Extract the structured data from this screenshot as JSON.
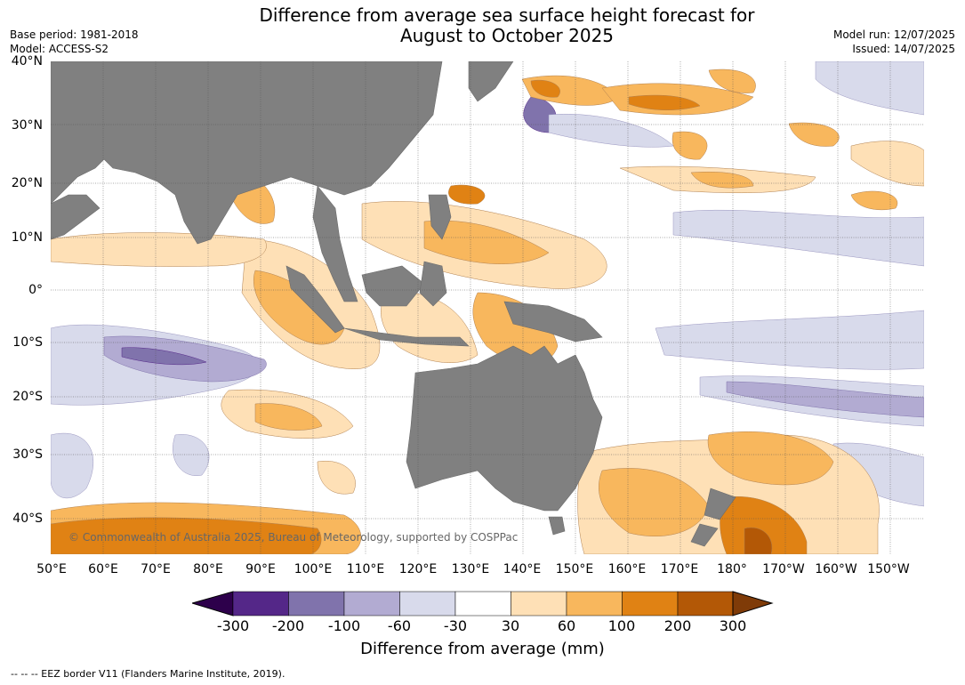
{
  "header": {
    "title_line1": "Difference from average sea surface height forecast for",
    "title_line2": "August to October 2025",
    "base_period": "Base period: 1981-2018",
    "model": "Model: ACCESS-S2",
    "model_run": "Model run: 12/07/2025",
    "issued": "Issued: 14/07/2025"
  },
  "map": {
    "lat_labels": [
      "40°N",
      "30°N",
      "20°N",
      "10°N",
      "0°",
      "10°S",
      "20°S",
      "30°S",
      "40°S"
    ],
    "lon_labels": [
      "50°E",
      "60°E",
      "70°E",
      "80°E",
      "90°E",
      "100°E",
      "110°E",
      "120°E",
      "130°E",
      "140°E",
      "150°E",
      "160°E",
      "170°E",
      "180°",
      "170°W",
      "160°W",
      "150°W"
    ],
    "copyright": "© Commonwealth of Australia 2025, Bureau of Meteorology, supported by COSPPac",
    "land_color": "#808080"
  },
  "colorbar": {
    "title": "Difference from average (mm)",
    "ticks": [
      "-300",
      "-200",
      "-100",
      "-60",
      "-30",
      "30",
      "60",
      "100",
      "200",
      "300"
    ],
    "colors": [
      "#2d004b",
      "#542788",
      "#8073ac",
      "#b2abd2",
      "#d8daeb",
      "#ffffff",
      "#fee0b6",
      "#f8b75d",
      "#e08214",
      "#b35806",
      "#7f3b08"
    ]
  },
  "footnote": "--  --  -- EEZ border V11 (Flanders Marine Institute, 2019)."
}
